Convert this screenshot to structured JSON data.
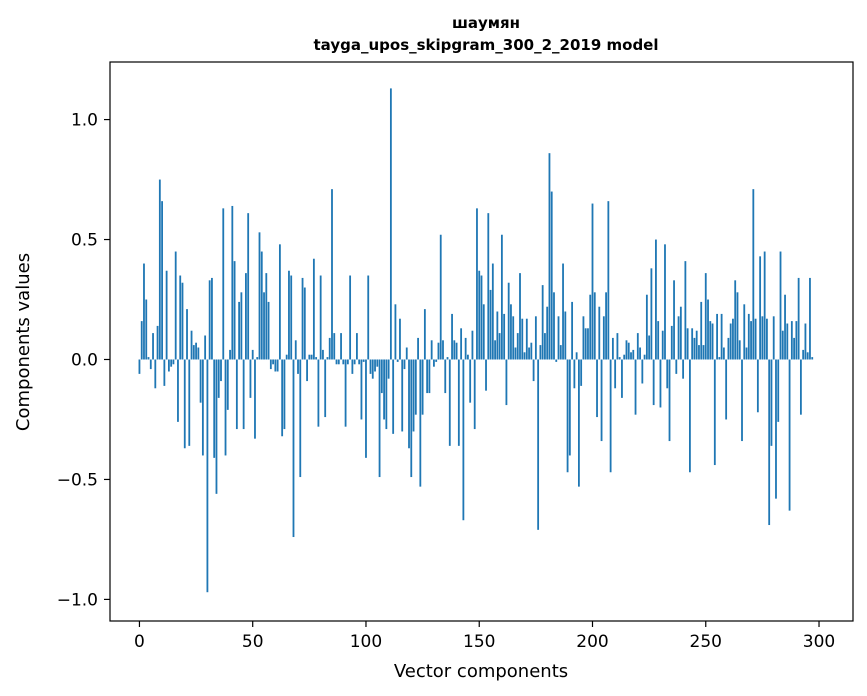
{
  "chart_data": {
    "type": "bar",
    "title": "шаумян",
    "subtitle": "tayga_upos_skipgram_300_2_2019 model",
    "xlabel": "Vector components",
    "ylabel": "Components values",
    "xlim": [
      -13,
      315
    ],
    "ylim": [
      -1.09,
      1.24
    ],
    "xticks": [
      0,
      50,
      100,
      150,
      200,
      250,
      300
    ],
    "yticks": [
      -1.0,
      -0.5,
      0.0,
      0.5,
      1.0
    ],
    "ytick_labels": [
      "−1.0",
      "−0.5",
      "0.0",
      "0.5",
      "1.0"
    ],
    "color": "#1f77b4",
    "grid": false,
    "values": [
      -0.06,
      0.16,
      0.4,
      0.25,
      0.01,
      -0.04,
      0.11,
      -0.12,
      0.14,
      0.75,
      0.66,
      -0.11,
      0.37,
      -0.05,
      -0.03,
      -0.02,
      0.45,
      -0.26,
      0.35,
      0.32,
      -0.37,
      0.21,
      -0.36,
      0.12,
      0.06,
      0.07,
      0.05,
      -0.18,
      -0.4,
      0.1,
      -0.97,
      0.33,
      0.34,
      -0.41,
      -0.56,
      -0.16,
      -0.09,
      0.63,
      -0.4,
      -0.21,
      0.04,
      0.64,
      0.41,
      -0.29,
      0.24,
      0.28,
      -0.29,
      0.36,
      0.61,
      -0.16,
      0.04,
      -0.33,
      0.01,
      0.53,
      0.45,
      0.28,
      0.36,
      0.24,
      -0.04,
      -0.02,
      -0.05,
      -0.05,
      0.48,
      -0.32,
      -0.29,
      0.02,
      0.37,
      0.35,
      -0.74,
      0.08,
      -0.06,
      -0.49,
      0.34,
      0.3,
      -0.09,
      0.02,
      0.02,
      0.42,
      0.01,
      -0.28,
      0.35,
      0.04,
      -0.24,
      0.01,
      0.09,
      0.71,
      0.11,
      -0.02,
      -0.02,
      0.11,
      -0.02,
      -0.28,
      -0.02,
      0.35,
      -0.06,
      -0.02,
      0.11,
      -0.02,
      -0.25,
      -0.01,
      -0.41,
      0.35,
      -0.06,
      -0.08,
      -0.05,
      -0.03,
      -0.49,
      -0.14,
      -0.25,
      -0.29,
      -0.08,
      1.13,
      -0.31,
      0.23,
      -0.01,
      0.17,
      -0.3,
      -0.04,
      0.05,
      -0.37,
      -0.49,
      -0.3,
      -0.23,
      0.09,
      -0.53,
      -0.23,
      0.21,
      -0.14,
      -0.14,
      0.08,
      -0.03,
      -0.01,
      0.07,
      0.52,
      0.08,
      -0.14,
      0.01,
      -0.36,
      0.19,
      0.08,
      0.07,
      -0.36,
      0.13,
      -0.67,
      0.09,
      0.02,
      -0.18,
      0.12,
      -0.29,
      0.63,
      0.37,
      0.35,
      0.23,
      -0.13,
      0.61,
      0.29,
      0.4,
      0.08,
      0.2,
      0.11,
      0.52,
      0.19,
      -0.19,
      0.32,
      0.23,
      0.18,
      0.05,
      0.11,
      0.36,
      0.17,
      0.03,
      0.17,
      0.05,
      0.07,
      -0.09,
      0.18,
      -0.71,
      0.06,
      0.31,
      0.11,
      0.22,
      0.86,
      0.7,
      0.28,
      -0.01,
      0.18,
      0.06,
      0.4,
      0.2,
      -0.47,
      -0.4,
      0.24,
      -0.12,
      0.03,
      -0.53,
      -0.11,
      0.18,
      0.13,
      0.13,
      0.27,
      0.65,
      0.28,
      -0.24,
      0.22,
      -0.34,
      0.18,
      0.28,
      0.66,
      -0.47,
      0.09,
      -0.12,
      0.11,
      0.01,
      -0.16,
      0.02,
      0.08,
      0.07,
      0.03,
      0.04,
      -0.23,
      0.11,
      0.05,
      -0.1,
      0.02,
      0.27,
      0.1,
      0.38,
      -0.19,
      0.5,
      0.16,
      -0.2,
      0.12,
      0.48,
      -0.12,
      -0.34,
      0.14,
      0.33,
      -0.06,
      0.18,
      0.22,
      -0.08,
      0.41,
      0.13,
      -0.47,
      0.13,
      0.09,
      0.12,
      0.06,
      0.24,
      0.06,
      0.36,
      0.25,
      0.16,
      0.15,
      -0.44,
      0.19,
      0.01,
      0.19,
      0.05,
      -0.25,
      0.09,
      0.15,
      0.17,
      0.33,
      0.28,
      0.08,
      -0.34,
      0.23,
      0.05,
      0.19,
      0.16,
      0.71,
      0.17,
      -0.22,
      0.43,
      0.18,
      0.45,
      0.17,
      -0.69,
      -0.36,
      0.18,
      -0.58,
      -0.26,
      0.45,
      0.12,
      0.27,
      0.15,
      -0.63,
      0.16,
      0.09,
      0.16,
      0.34,
      -0.23,
      0.04,
      0.15,
      0.03,
      0.34,
      0.01
    ]
  }
}
